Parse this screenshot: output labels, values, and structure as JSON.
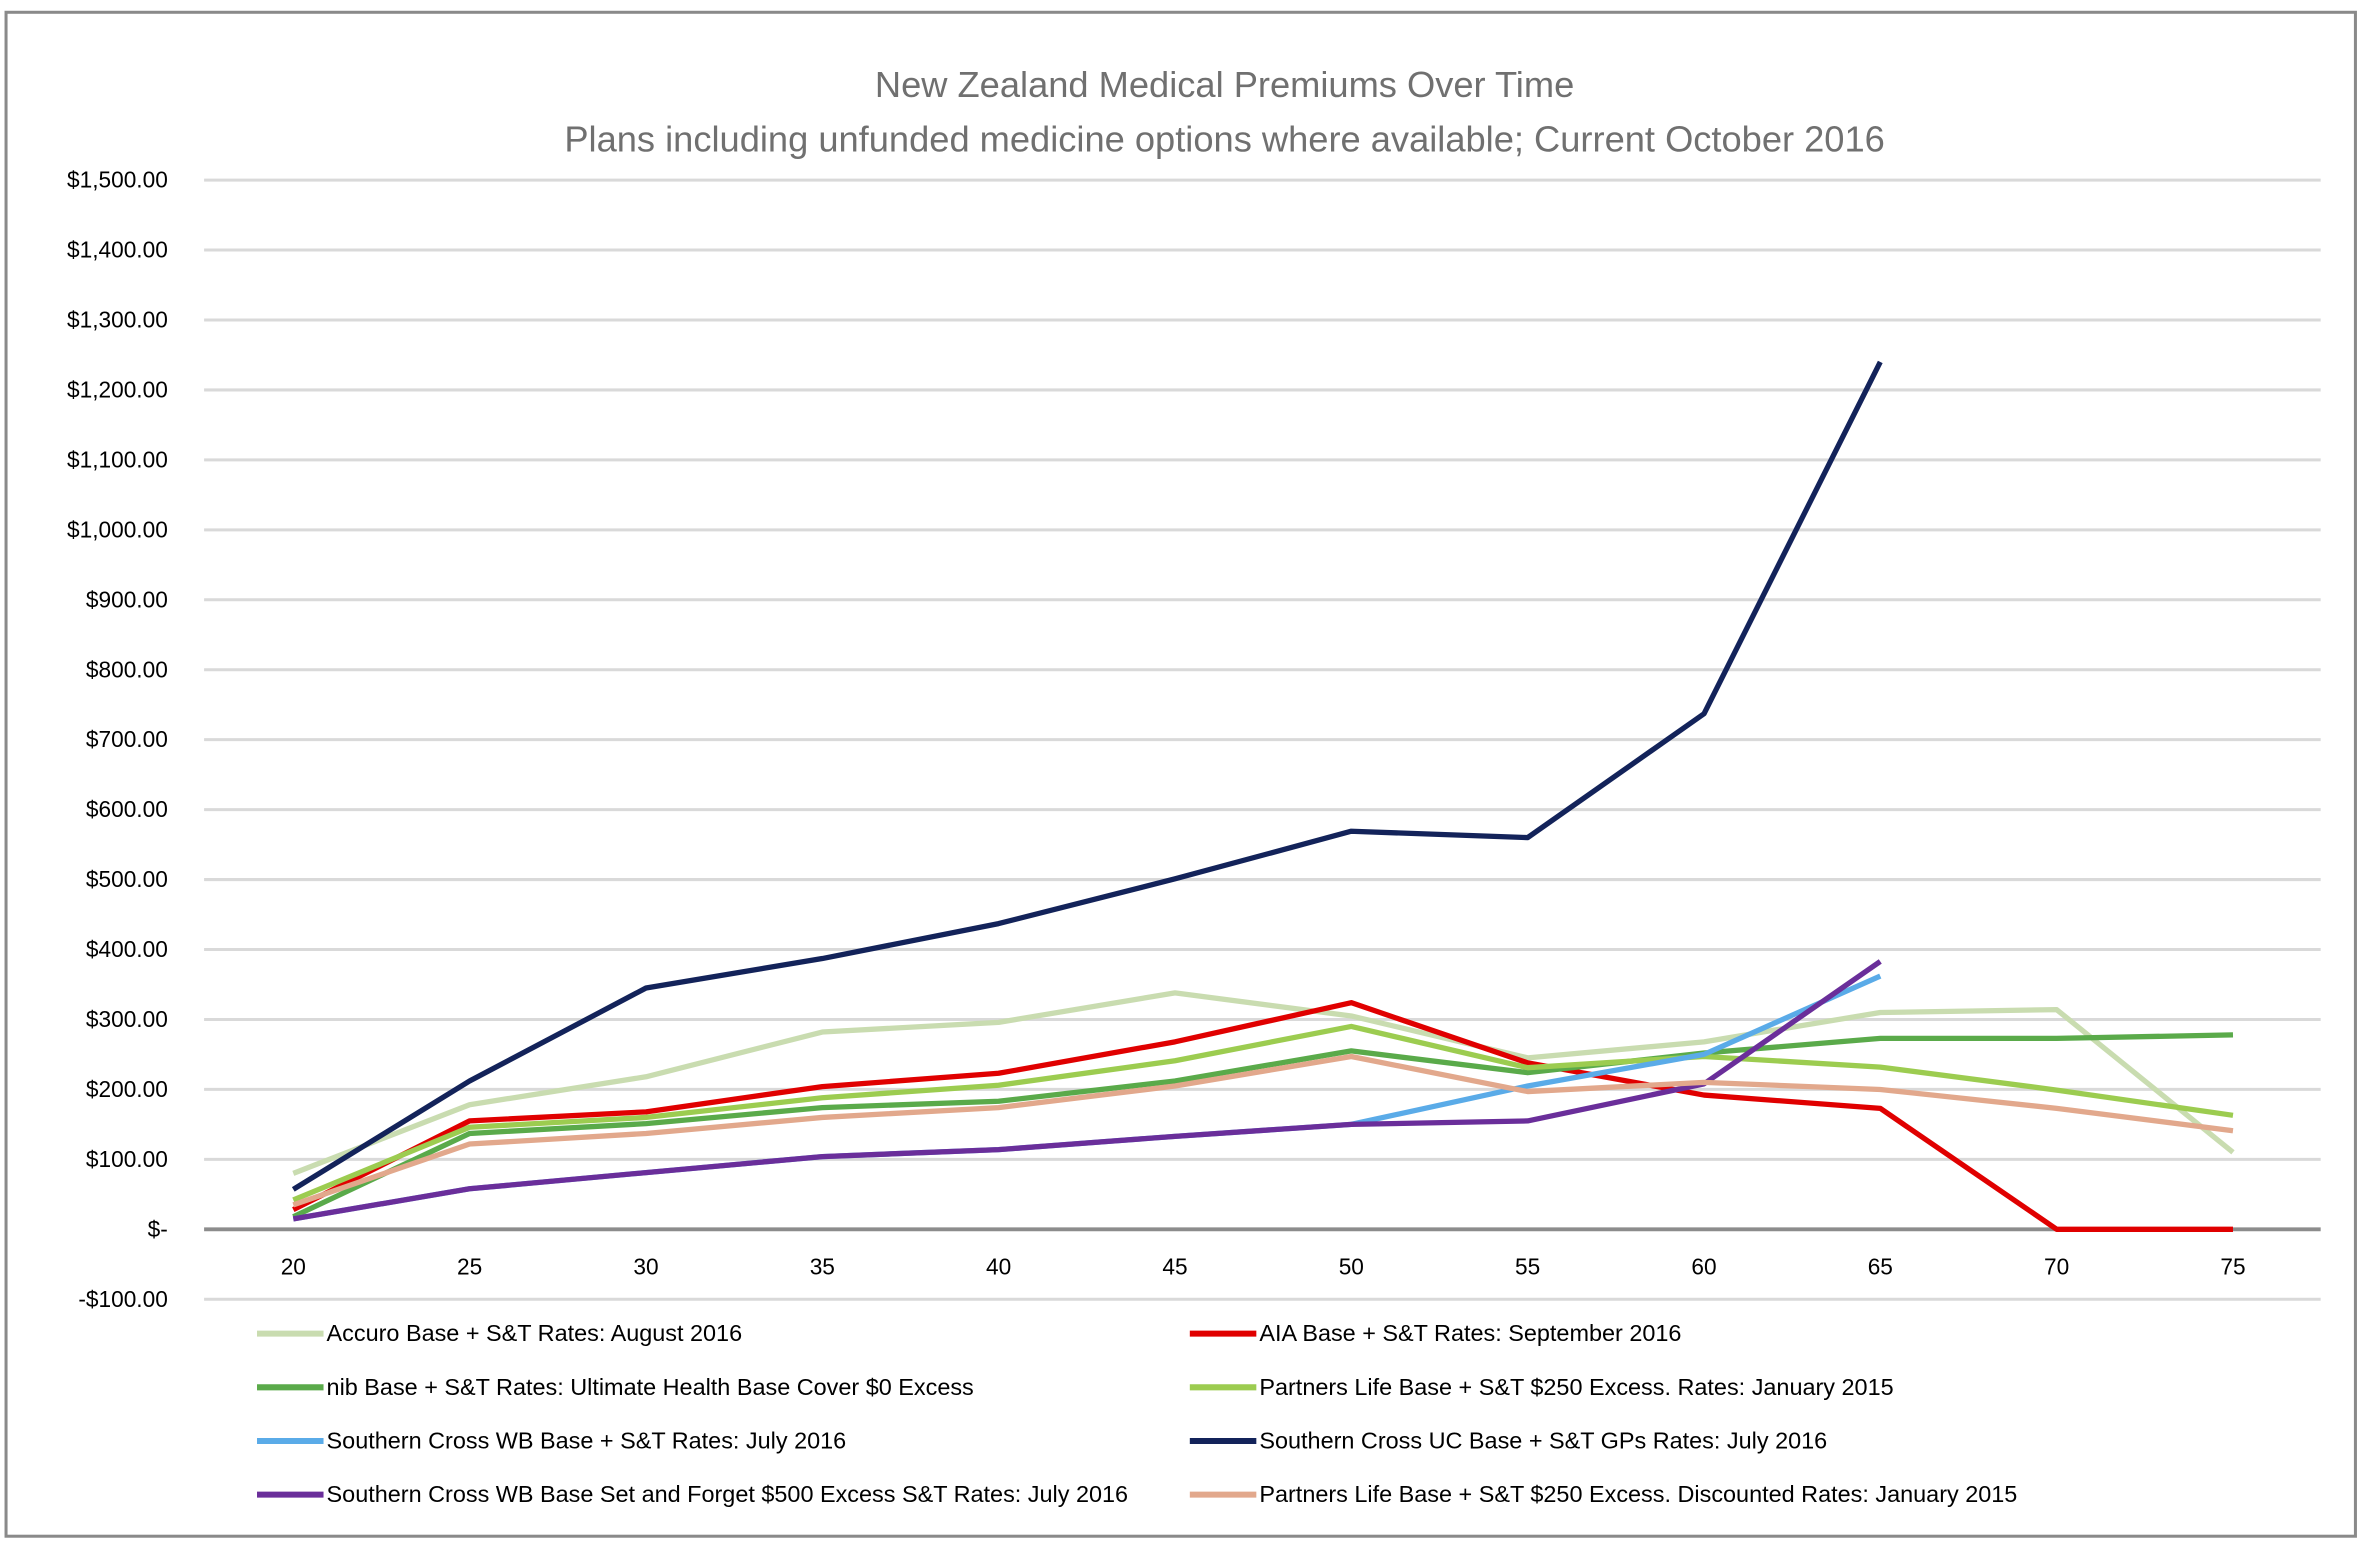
{
  "chart_data": {
    "type": "line",
    "title": "New Zealand Medical Premiums Over Time",
    "subtitle": "Plans including unfunded medicine options where available; Current October 2016",
    "xlabel": "",
    "ylabel": "",
    "x": [
      20,
      25,
      30,
      35,
      40,
      45,
      50,
      55,
      60,
      65,
      70,
      75
    ],
    "ylim": [
      -100,
      1500
    ],
    "y_ticks": [
      {
        "value": 1500,
        "label": "$1,500.00"
      },
      {
        "value": 1400,
        "label": "$1,400.00"
      },
      {
        "value": 1300,
        "label": "$1,300.00"
      },
      {
        "value": 1200,
        "label": "$1,200.00"
      },
      {
        "value": 1100,
        "label": "$1,100.00"
      },
      {
        "value": 1000,
        "label": "$1,000.00"
      },
      {
        "value": 900,
        "label": "$900.00"
      },
      {
        "value": 800,
        "label": "$800.00"
      },
      {
        "value": 700,
        "label": "$700.00"
      },
      {
        "value": 600,
        "label": "$600.00"
      },
      {
        "value": 500,
        "label": "$500.00"
      },
      {
        "value": 400,
        "label": "$400.00"
      },
      {
        "value": 300,
        "label": "$300.00"
      },
      {
        "value": 200,
        "label": "$200.00"
      },
      {
        "value": 100,
        "label": "$100.00"
      },
      {
        "value": 0,
        "label": "$-"
      },
      {
        "value": -100,
        "label": "-$100.00"
      }
    ],
    "x_tick_labels": [
      "20",
      "25",
      "30",
      "35",
      "40",
      "45",
      "50",
      "55",
      "60",
      "65",
      "70",
      "75"
    ],
    "grid": true,
    "legend_position": "bottom",
    "series": [
      {
        "name": "Accuro Base + S&T  Rates: August 2016",
        "color": "#c9dcb0",
        "values": [
          80,
          178,
          218,
          282,
          296,
          338,
          305,
          245,
          268,
          310,
          314,
          110
        ]
      },
      {
        "name": "AIA Base + S&T Rates: September 2016",
        "color": "#e00000",
        "values": [
          28,
          155,
          168,
          204,
          223,
          268,
          324,
          238,
          192,
          173,
          0,
          0
        ]
      },
      {
        "name": "nib Base + S&T Rates: Ultimate Health Base Cover $0 Excess",
        "color": "#5aaa4a",
        "values": [
          18,
          137,
          151,
          174,
          183,
          212,
          255,
          224,
          252,
          273,
          273,
          278
        ]
      },
      {
        "name": "Partners Life Base + S&T $250 Excess. Rates: January 2015",
        "color": "#9ccc50",
        "values": [
          42,
          146,
          160,
          188,
          206,
          241,
          290,
          231,
          247,
          232,
          199,
          163
        ]
      },
      {
        "name": "Southern Cross WB Base + S&T Rates: July 2016",
        "color": "#5aabe8",
        "values": [
          15,
          58,
          81,
          104,
          114,
          133,
          150,
          205,
          250,
          362,
          null,
          null
        ]
      },
      {
        "name": "Southern Cross UC Base + S&T GPs Rates: July 2016",
        "color": "#13235a",
        "values": [
          57,
          212,
          345,
          387,
          437,
          501,
          569,
          560,
          737,
          1240,
          null,
          null
        ]
      },
      {
        "name": "Southern Cross WB Base Set and Forget $500 Excess S&T Rates: July 2016",
        "color": "#6a2e9a",
        "values": [
          15,
          58,
          81,
          104,
          114,
          133,
          150,
          155,
          208,
          383,
          null,
          null
        ]
      },
      {
        "name": "Partners Life Base + S&T $250 Excess. Discounted Rates: January 2015",
        "color": "#e2a88c",
        "values": [
          35,
          122,
          137,
          160,
          174,
          205,
          247,
          197,
          210,
          200,
          173,
          141
        ]
      }
    ]
  }
}
